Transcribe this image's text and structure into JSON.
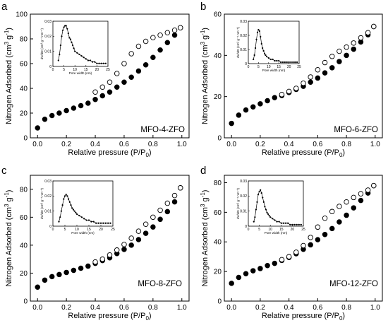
{
  "chart_data": [
    {
      "type": "scatter",
      "panel": "a",
      "sample": "MFO-4-ZFO",
      "title": "",
      "xlabel": "Relative pressure (P/P",
      "xlabel_sub": "0",
      "xlabel_close": ")",
      "ylabel": "Nitrogen Adsorbed (cm",
      "ylabel_sup1": "3",
      "ylabel_mid": " g",
      "ylabel_sup2": "-1",
      "ylabel_close": ")",
      "xlim": [
        -0.05,
        1.05
      ],
      "ylim": [
        0,
        100
      ],
      "xticks": [
        0.0,
        0.2,
        0.4,
        0.6,
        0.8,
        1.0
      ],
      "xtick_labels": [
        "0.0",
        "0.2",
        "0.4",
        "0.6",
        "0.8",
        "1.0"
      ],
      "yticks": [
        0,
        20,
        40,
        60,
        80,
        100
      ],
      "ytick_labels": [
        "0",
        "20",
        "40",
        "60",
        "80",
        "100"
      ],
      "series": [
        {
          "kind": "adsorption",
          "marker": "filled-circle",
          "x": [
            0.0,
            0.05,
            0.1,
            0.15,
            0.2,
            0.25,
            0.3,
            0.35,
            0.4,
            0.45,
            0.5,
            0.55,
            0.6,
            0.65,
            0.7,
            0.75,
            0.8,
            0.85,
            0.9,
            0.95,
            0.99
          ],
          "y": [
            8,
            15,
            18,
            20,
            22,
            24,
            26,
            28,
            31,
            34,
            37,
            41,
            45,
            49,
            54,
            59,
            65,
            71,
            77,
            83,
            89
          ]
        },
        {
          "kind": "desorption",
          "marker": "open-circle",
          "x": [
            0.4,
            0.45,
            0.5,
            0.55,
            0.6,
            0.65,
            0.7,
            0.75,
            0.8,
            0.85,
            0.9,
            0.95,
            0.99
          ],
          "y": [
            37,
            41,
            45,
            52,
            60,
            68,
            74,
            78,
            81,
            83,
            85,
            87,
            89
          ]
        }
      ],
      "inset": {
        "xlabel": "Pore width (nm)",
        "ylabel": "dV/dD (cm³ g⁻¹ nm⁻¹)",
        "xlim": [
          0,
          25
        ],
        "ylim": [
          0,
          0.03
        ],
        "xticks": [
          0,
          5,
          10,
          15,
          20,
          25
        ],
        "xtick_labels": [
          "0",
          "5",
          "10",
          "15",
          "20",
          "25"
        ],
        "yticks": [
          0,
          0.01,
          0.02,
          0.03
        ],
        "ytick_labels": [
          "0",
          "0.01",
          "0.02",
          "0.03"
        ],
        "x": [
          2.5,
          3,
          3.5,
          4,
          4.5,
          5,
          5.5,
          6,
          6.5,
          7,
          7.5,
          8,
          8.5,
          9,
          9.5,
          10,
          11,
          12,
          13,
          14,
          15,
          16,
          17,
          18,
          19,
          20,
          21,
          22,
          23,
          24
        ],
        "y": [
          0.004,
          0.008,
          0.014,
          0.02,
          0.024,
          0.026,
          0.027,
          0.027,
          0.025,
          0.022,
          0.019,
          0.018,
          0.016,
          0.014,
          0.012,
          0.01,
          0.009,
          0.008,
          0.007,
          0.006,
          0.005,
          0.004,
          0.004,
          0.003,
          0.003,
          0.002,
          0.002,
          0.002,
          0.002,
          0.002
        ]
      }
    },
    {
      "type": "scatter",
      "panel": "b",
      "sample": "MFO-6-ZFO",
      "title": "",
      "xlabel": "Relative pressure (P/P",
      "xlabel_sub": "0",
      "xlabel_close": ")",
      "ylabel": "Nitrogen Adsorbed (cm",
      "ylabel_sup1": "3",
      "ylabel_mid": " g",
      "ylabel_sup2": "-1",
      "ylabel_close": ")",
      "xlim": [
        -0.05,
        1.05
      ],
      "ylim": [
        0,
        60
      ],
      "xticks": [
        0.0,
        0.2,
        0.4,
        0.6,
        0.8,
        1.0
      ],
      "xtick_labels": [
        "0.0",
        "0.2",
        "0.4",
        "0.6",
        "0.8",
        "1.0"
      ],
      "yticks": [
        0,
        20,
        40,
        60
      ],
      "ytick_labels": [
        "0",
        "20",
        "40",
        "60"
      ],
      "series": [
        {
          "kind": "adsorption",
          "marker": "filled-circle",
          "x": [
            0.0,
            0.05,
            0.1,
            0.15,
            0.2,
            0.25,
            0.3,
            0.35,
            0.4,
            0.45,
            0.5,
            0.55,
            0.6,
            0.65,
            0.7,
            0.75,
            0.8,
            0.85,
            0.9,
            0.95,
            0.99
          ],
          "y": [
            7,
            11,
            13.5,
            15,
            16.5,
            18,
            19.5,
            20.5,
            22,
            23.5,
            25,
            27,
            29,
            31.5,
            34,
            37,
            40,
            43,
            46.5,
            50,
            54
          ]
        },
        {
          "kind": "desorption",
          "marker": "open-circle",
          "x": [
            0.35,
            0.4,
            0.45,
            0.5,
            0.55,
            0.6,
            0.65,
            0.7,
            0.75,
            0.8,
            0.85,
            0.9,
            0.95,
            0.99
          ],
          "y": [
            21,
            22.5,
            24,
            26.5,
            29.5,
            33,
            36.5,
            39.5,
            42,
            44,
            46,
            48.5,
            51,
            54
          ]
        }
      ],
      "inset": {
        "xlabel": "Pore width (nm)",
        "ylabel": "dV/dD (cm³ g⁻¹ nm⁻¹)",
        "xlim": [
          0,
          25
        ],
        "ylim": [
          0,
          0.03
        ],
        "xticks": [
          0,
          5,
          10,
          15,
          20,
          25
        ],
        "xtick_labels": [
          "0",
          "5",
          "10",
          "15",
          "20",
          "25"
        ],
        "yticks": [
          0,
          0.01,
          0.02,
          0.03
        ],
        "ytick_labels": [
          "0",
          "0.01",
          "0.02",
          "0.03"
        ],
        "x": [
          2.5,
          3,
          3.5,
          4,
          4.5,
          5,
          5.5,
          6,
          6.5,
          7,
          7.5,
          8,
          8.5,
          9,
          10,
          11,
          12,
          13,
          14,
          15,
          16,
          17,
          18,
          19,
          20,
          21,
          22,
          23,
          24
        ],
        "y": [
          0.003,
          0.006,
          0.011,
          0.017,
          0.022,
          0.024,
          0.023,
          0.019,
          0.014,
          0.011,
          0.009,
          0.007,
          0.006,
          0.005,
          0.004,
          0.003,
          0.003,
          0.002,
          0.002,
          0.002,
          0.001,
          0.001,
          0.001,
          0.001,
          0.001,
          0.001,
          0.001,
          0.001,
          0.001
        ]
      }
    },
    {
      "type": "scatter",
      "panel": "c",
      "sample": "MFO-8-ZFO",
      "title": "",
      "xlabel": "Relative pressure (P/P",
      "xlabel_sub": "0",
      "xlabel_close": ")",
      "ylabel": "Nitrogen Adsorbed (cm",
      "ylabel_sup1": "3",
      "ylabel_mid": " g",
      "ylabel_sup2": "-1",
      "ylabel_close": ")",
      "xlim": [
        -0.05,
        1.05
      ],
      "ylim": [
        0,
        90
      ],
      "xticks": [
        0.0,
        0.2,
        0.4,
        0.6,
        0.8,
        1.0
      ],
      "xtick_labels": [
        "0.0",
        "0.2",
        "0.4",
        "0.6",
        "0.8",
        "1.0"
      ],
      "yticks": [
        0,
        20,
        40,
        60,
        80
      ],
      "ytick_labels": [
        "0",
        "20",
        "40",
        "60",
        "80"
      ],
      "series": [
        {
          "kind": "adsorption",
          "marker": "filled-circle",
          "x": [
            0.0,
            0.05,
            0.1,
            0.15,
            0.2,
            0.25,
            0.3,
            0.35,
            0.4,
            0.45,
            0.5,
            0.55,
            0.6,
            0.65,
            0.7,
            0.75,
            0.8,
            0.85,
            0.9,
            0.95,
            0.99
          ],
          "y": [
            10,
            15,
            17.5,
            19,
            20.5,
            22,
            23.5,
            25,
            27,
            29,
            31,
            34,
            37,
            40,
            44,
            48.5,
            53,
            58.5,
            64,
            71,
            81
          ]
        },
        {
          "kind": "desorption",
          "marker": "open-circle",
          "x": [
            0.4,
            0.45,
            0.5,
            0.55,
            0.6,
            0.65,
            0.7,
            0.75,
            0.8,
            0.85,
            0.9,
            0.95,
            0.99
          ],
          "y": [
            28,
            30,
            33,
            36.5,
            40.5,
            45,
            50,
            55,
            60,
            65,
            70,
            75.5,
            81
          ]
        }
      ],
      "inset": {
        "xlabel": "Pore width (nm)",
        "ylabel": "dV/dD (cm³ g⁻¹ nm⁻¹)",
        "xlim": [
          0,
          25
        ],
        "ylim": [
          0,
          0.03
        ],
        "xticks": [
          0,
          5,
          10,
          15,
          20,
          25
        ],
        "xtick_labels": [
          "0",
          "5",
          "10",
          "15",
          "20",
          "25"
        ],
        "yticks": [
          0,
          0.01,
          0.02,
          0.03
        ],
        "ytick_labels": [
          "0",
          "0.01",
          "0.02",
          "0.03"
        ],
        "x": [
          2.5,
          3,
          3.5,
          4,
          4.5,
          5,
          5.5,
          6,
          6.5,
          7,
          7.5,
          8,
          8.5,
          9,
          9.5,
          10,
          11,
          12,
          13,
          14,
          15,
          16,
          17,
          18,
          19,
          20,
          21,
          22,
          23,
          24
        ],
        "y": [
          0.003,
          0.006,
          0.01,
          0.014,
          0.018,
          0.02,
          0.021,
          0.02,
          0.018,
          0.016,
          0.014,
          0.012,
          0.011,
          0.01,
          0.009,
          0.008,
          0.007,
          0.006,
          0.005,
          0.004,
          0.004,
          0.003,
          0.003,
          0.002,
          0.002,
          0.002,
          0.002,
          0.002,
          0.002,
          0.002
        ]
      }
    },
    {
      "type": "scatter",
      "panel": "d",
      "sample": "MFO-12-ZFO",
      "title": "",
      "xlabel": "Relative pressure (P/P",
      "xlabel_sub": "0",
      "xlabel_close": ")",
      "ylabel": "Nitrogen Adsorbed (cm",
      "ylabel_sup1": "3",
      "ylabel_mid": " g",
      "ylabel_sup2": "-1",
      "ylabel_close": ")",
      "xlim": [
        -0.05,
        1.05
      ],
      "ylim": [
        0,
        85
      ],
      "xticks": [
        0.0,
        0.2,
        0.4,
        0.6,
        0.8,
        1.0
      ],
      "xtick_labels": [
        "0.0",
        "0.2",
        "0.4",
        "0.6",
        "0.8",
        "1.0"
      ],
      "yticks": [
        0,
        20,
        40,
        60,
        80
      ],
      "ytick_labels": [
        "0",
        "20",
        "40",
        "60",
        "80"
      ],
      "series": [
        {
          "kind": "adsorption",
          "marker": "filled-circle",
          "x": [
            0.0,
            0.05,
            0.1,
            0.15,
            0.2,
            0.25,
            0.3,
            0.35,
            0.4,
            0.45,
            0.5,
            0.55,
            0.6,
            0.65,
            0.7,
            0.75,
            0.8,
            0.85,
            0.9,
            0.95,
            0.99
          ],
          "y": [
            12,
            16,
            18.5,
            20.5,
            22,
            24,
            25.5,
            27.5,
            29.5,
            32,
            35,
            38,
            41.5,
            45,
            49,
            53.5,
            58,
            63,
            68,
            73,
            78
          ]
        },
        {
          "kind": "desorption",
          "marker": "open-circle",
          "x": [
            0.35,
            0.4,
            0.45,
            0.5,
            0.55,
            0.6,
            0.65,
            0.7,
            0.75,
            0.8,
            0.85,
            0.9,
            0.95,
            0.99
          ],
          "y": [
            28,
            30,
            33,
            37.5,
            43,
            50,
            56,
            60.5,
            64,
            67,
            70,
            72.5,
            75,
            78
          ]
        }
      ],
      "inset": {
        "xlabel": "Pore width (nm)",
        "ylabel": "dV/dD (cm³ g⁻¹ nm⁻¹)",
        "xlim": [
          0,
          25
        ],
        "ylim": [
          0,
          0.03
        ],
        "xticks": [
          0,
          5,
          10,
          15,
          20,
          25
        ],
        "xtick_labels": [
          "0",
          "5",
          "10",
          "15",
          "20",
          "25"
        ],
        "yticks": [
          0,
          0.01,
          0.02,
          0.03
        ],
        "ytick_labels": [
          "0",
          "0.01",
          "0.02",
          "0.03"
        ],
        "x": [
          2.5,
          3,
          3.5,
          4,
          4.5,
          5,
          5.5,
          6,
          6.5,
          7,
          7.5,
          8,
          8.5,
          9,
          9.5,
          10,
          11,
          12,
          13,
          14,
          15,
          16,
          17,
          18,
          19,
          20,
          21,
          22,
          23,
          24
        ],
        "y": [
          0.003,
          0.006,
          0.011,
          0.016,
          0.021,
          0.023,
          0.024,
          0.022,
          0.019,
          0.016,
          0.013,
          0.011,
          0.009,
          0.008,
          0.007,
          0.006,
          0.005,
          0.004,
          0.003,
          0.003,
          0.002,
          0.002,
          0.002,
          0.002,
          0.001,
          0.001,
          0.001,
          0.001,
          0.001,
          0.001
        ]
      }
    }
  ]
}
